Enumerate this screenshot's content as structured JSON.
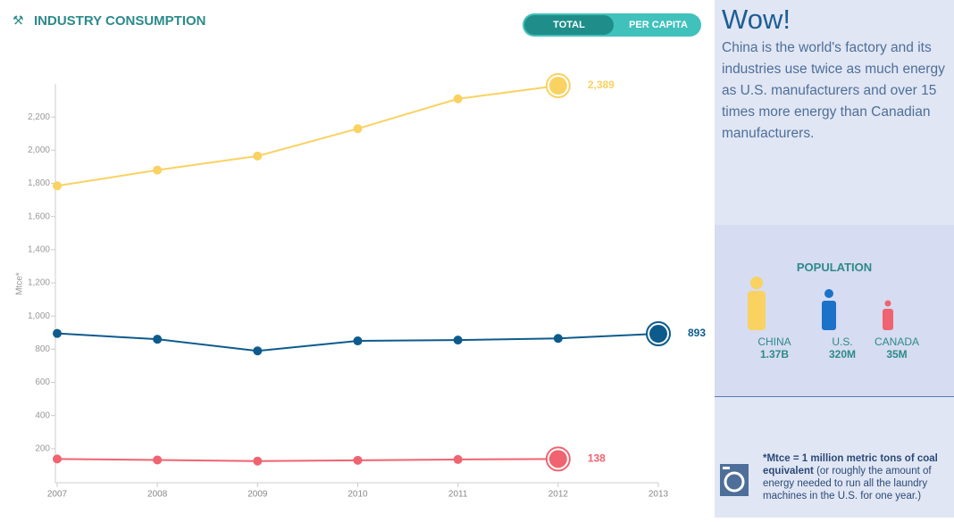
{
  "chart_data": {
    "type": "line",
    "title": "INDUSTRY CONSUMPTION",
    "y_label": "Mtce*",
    "x": [
      2007,
      2008,
      2009,
      2010,
      2011,
      2012,
      2013
    ],
    "series": [
      {
        "name": "China",
        "color": "#f9d262",
        "values": [
          1785,
          1880,
          1965,
          2130,
          2310,
          2389,
          null
        ],
        "value_labels": [
          null,
          null,
          null,
          null,
          null,
          "2,389",
          null
        ]
      },
      {
        "name": "U.S.",
        "color": "#0d5b8c",
        "values": [
          895,
          860,
          790,
          850,
          855,
          865,
          893
        ],
        "value_labels": [
          null,
          null,
          null,
          null,
          null,
          null,
          "893"
        ]
      },
      {
        "name": "Canada",
        "color": "#ef6470",
        "values": [
          138,
          132,
          125,
          130,
          135,
          138,
          null
        ],
        "value_labels": [
          null,
          null,
          null,
          null,
          null,
          "138",
          null
        ]
      }
    ],
    "xlim": [
      2007,
      2013
    ],
    "xticks": [
      2007,
      2008,
      2009,
      2010,
      2011,
      2012,
      2013
    ],
    "ylim": [
      0,
      2400
    ],
    "yticks": [
      200,
      400,
      600,
      800,
      {
        "value": 1000,
        "label": "1,000"
      },
      {
        "value": 1200,
        "label": "1,200"
      },
      {
        "value": 1400,
        "label": "1,400"
      },
      {
        "value": 1600,
        "label": "1,600"
      },
      {
        "value": 1800,
        "label": "1,800"
      },
      {
        "value": 2000,
        "label": "2,000"
      },
      {
        "value": 2200,
        "label": "2,200"
      }
    ],
    "grid": false
  },
  "toggle": {
    "total": "TOTAL",
    "per_capita": "PER CAPITA"
  },
  "sidebar": {
    "headline": "Wow!",
    "text": "China is the world's factory and its industries use twice as much energy as U.S. manufacturers and over 15 times more energy than Canadian manufacturers.",
    "population_title": "POPULATION",
    "population": [
      {
        "label": "CHINA",
        "value": "1.37B"
      },
      {
        "label": "U.S.",
        "value": "320M"
      },
      {
        "label": "CANADA",
        "value": "35M"
      }
    ],
    "note_bold": "*Mtce = 1 million metric tons of coal equivalent",
    "note_rest": " (or roughly the amount of energy needed to run all the laundry machines in the U.S. for one year.)"
  }
}
